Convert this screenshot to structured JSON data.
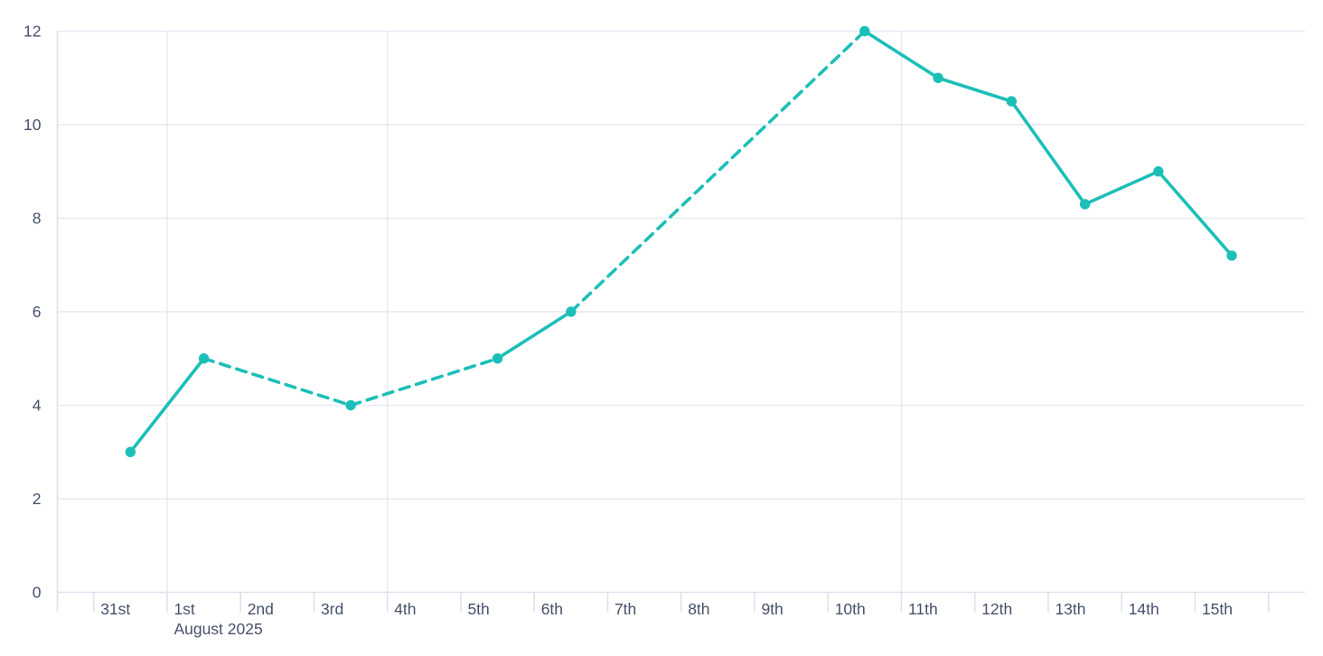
{
  "chart": {
    "background_color": "#ffffff"
  },
  "chart_data": {
    "type": "line",
    "title": "",
    "legend": "none",
    "grid": "on",
    "x_axis": {
      "type": "datetime",
      "month_label": "August 2025",
      "tick_labels": [
        "31st",
        "1st",
        "2nd",
        "3rd",
        "4th",
        "5th",
        "6th",
        "7th",
        "8th",
        "9th",
        "10th",
        "11th",
        "12th",
        "13th",
        "14th",
        "15th",
        ""
      ],
      "month_label_under_tick": 1,
      "gridlines_at_ticks": [
        1,
        4,
        11
      ]
    },
    "y_axis": {
      "ticks": [
        0,
        2,
        4,
        6,
        8,
        10,
        12
      ],
      "range": [
        0,
        12
      ],
      "label": ""
    },
    "series": [
      {
        "name": "value",
        "color": "#1CBFB8",
        "marker": "circle",
        "gap_line_style": "dashed",
        "points": [
          {
            "label": "31st",
            "day": 0,
            "value": 3
          },
          {
            "label": "1st",
            "day": 1,
            "value": 5
          },
          {
            "label": "3rd",
            "day": 3,
            "value": 4
          },
          {
            "label": "5th",
            "day": 5,
            "value": 5
          },
          {
            "label": "6th",
            "day": 6,
            "value": 6
          },
          {
            "label": "10th",
            "day": 10,
            "value": 12
          },
          {
            "label": "11th",
            "day": 11,
            "value": 11
          },
          {
            "label": "12th",
            "day": 12,
            "value": 10.5
          },
          {
            "label": "13th",
            "day": 13,
            "value": 8.3
          },
          {
            "label": "14th",
            "day": 14,
            "value": 9
          },
          {
            "label": "15th",
            "day": 15,
            "value": 7.2
          }
        ]
      }
    ],
    "colors": {
      "line": "#1CBFB8",
      "gridline": "#E7E9F2",
      "axis_line": "#DFE2EC",
      "tick_text": "#47516B"
    }
  }
}
